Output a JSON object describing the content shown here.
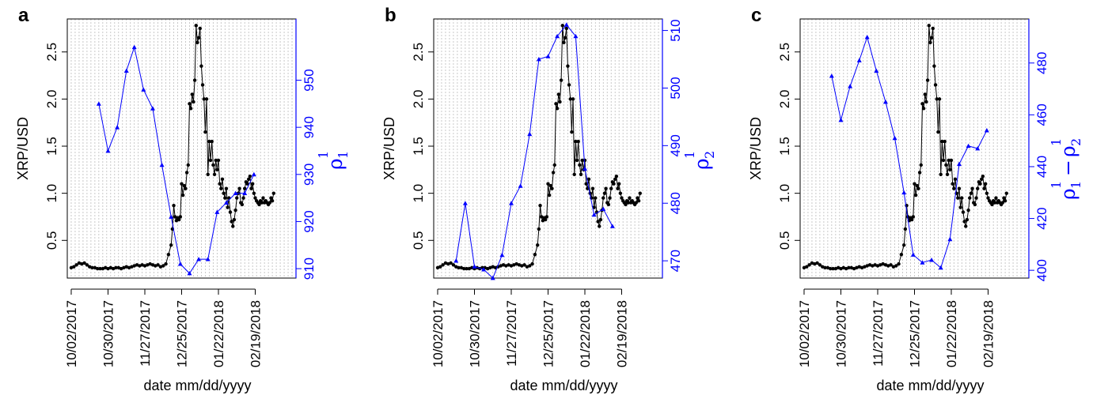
{
  "chart_data": [
    {
      "type": "line",
      "panel_label": "a",
      "xlabel": "date mm/dd/yyyy",
      "ylabel": "XRP/USD",
      "y2label": {
        "symbol": "ρ",
        "subscript": "1",
        "superscript": "1"
      },
      "x_range": [
        -3,
        171
      ],
      "xticks": [
        {
          "day": 0,
          "label": "10/02/2017"
        },
        {
          "day": 28,
          "label": "10/30/2017"
        },
        {
          "day": 56,
          "label": "11/27/2017"
        },
        {
          "day": 84,
          "label": "12/25/2017"
        },
        {
          "day": 112,
          "label": "01/22/2018"
        },
        {
          "day": 140,
          "label": "02/19/2018"
        }
      ],
      "gridline_step_days": 3,
      "ylim": [
        0.1,
        2.85
      ],
      "yticks": [
        0.5,
        1.0,
        1.5,
        2.0,
        2.5
      ],
      "y2lim": [
        908,
        963
      ],
      "y2ticks": [
        910,
        920,
        930,
        940,
        950
      ],
      "series_rho": [
        {
          "day": 21,
          "value": 945
        },
        {
          "day": 28,
          "value": 935
        },
        {
          "day": 35,
          "value": 940
        },
        {
          "day": 42,
          "value": 952
        },
        {
          "day": 48,
          "value": 957
        },
        {
          "day": 55,
          "value": 948
        },
        {
          "day": 62,
          "value": 944
        },
        {
          "day": 69,
          "value": 932
        },
        {
          "day": 76,
          "value": 921
        },
        {
          "day": 83,
          "value": 911
        },
        {
          "day": 90,
          "value": 909
        },
        {
          "day": 97,
          "value": 912
        },
        {
          "day": 104,
          "value": 912
        },
        {
          "day": 111,
          "value": 922
        },
        {
          "day": 118,
          "value": 924
        },
        {
          "day": 125,
          "value": 926
        },
        {
          "day": 132,
          "value": 926
        },
        {
          "day": 139,
          "value": 930
        }
      ]
    },
    {
      "type": "line",
      "panel_label": "b",
      "xlabel": "date mm/dd/yyyy",
      "ylabel": "XRP/USD",
      "y2label": {
        "symbol": "ρ",
        "subscript": "2",
        "superscript": "1"
      },
      "x_range": [
        -3,
        171
      ],
      "xticks": [
        {
          "day": 0,
          "label": "10/02/2017"
        },
        {
          "day": 28,
          "label": "10/30/2017"
        },
        {
          "day": 56,
          "label": "11/27/2017"
        },
        {
          "day": 84,
          "label": "12/25/2017"
        },
        {
          "day": 112,
          "label": "01/22/2018"
        },
        {
          "day": 140,
          "label": "02/19/2018"
        }
      ],
      "gridline_step_days": 3,
      "ylim": [
        0.1,
        2.85
      ],
      "yticks": [
        0.5,
        1.0,
        1.5,
        2.0,
        2.5
      ],
      "y2lim": [
        467,
        512
      ],
      "y2ticks": [
        470,
        480,
        490,
        500,
        510
      ],
      "series_rho": [
        {
          "day": 14,
          "value": 470
        },
        {
          "day": 21,
          "value": 480
        },
        {
          "day": 28,
          "value": 469
        },
        {
          "day": 35,
          "value": 468.5
        },
        {
          "day": 42,
          "value": 467
        },
        {
          "day": 49,
          "value": 471
        },
        {
          "day": 56,
          "value": 480
        },
        {
          "day": 63,
          "value": 483
        },
        {
          "day": 70,
          "value": 492
        },
        {
          "day": 77,
          "value": 505
        },
        {
          "day": 84,
          "value": 505.5
        },
        {
          "day": 91,
          "value": 509
        },
        {
          "day": 98,
          "value": 511
        },
        {
          "day": 105,
          "value": 509
        },
        {
          "day": 112,
          "value": 486
        },
        {
          "day": 119,
          "value": 478
        },
        {
          "day": 126,
          "value": 479
        },
        {
          "day": 133,
          "value": 476
        }
      ]
    },
    {
      "type": "line",
      "panel_label": "c",
      "xlabel": "date mm/dd/yyyy",
      "ylabel": "XRP/USD",
      "y2label": {
        "symbol": "ρ",
        "subscript_a": "1",
        "subscript_b": "2",
        "superscript_a": "1",
        "superscript_b": "1",
        "minus": "−"
      },
      "x_range": [
        -3,
        171
      ],
      "xticks": [
        {
          "day": 0,
          "label": "10/02/2017"
        },
        {
          "day": 28,
          "label": "10/30/2017"
        },
        {
          "day": 56,
          "label": "11/27/2017"
        },
        {
          "day": 84,
          "label": "12/25/2017"
        },
        {
          "day": 112,
          "label": "01/22/2018"
        },
        {
          "day": 140,
          "label": "02/19/2018"
        }
      ],
      "gridline_step_days": 3,
      "ylim": [
        0.1,
        2.85
      ],
      "yticks": [
        0.5,
        1.0,
        1.5,
        2.0,
        2.5
      ],
      "y2lim": [
        397,
        497
      ],
      "y2ticks": [
        400,
        420,
        440,
        460,
        480
      ],
      "series_rho": [
        {
          "day": 21,
          "value": 475
        },
        {
          "day": 28,
          "value": 458
        },
        {
          "day": 35,
          "value": 471
        },
        {
          "day": 42,
          "value": 481
        },
        {
          "day": 48,
          "value": 490
        },
        {
          "day": 55,
          "value": 477
        },
        {
          "day": 62,
          "value": 465
        },
        {
          "day": 69,
          "value": 451
        },
        {
          "day": 76,
          "value": 430
        },
        {
          "day": 83,
          "value": 406
        },
        {
          "day": 90,
          "value": 403
        },
        {
          "day": 97,
          "value": 404
        },
        {
          "day": 104,
          "value": 401
        },
        {
          "day": 111,
          "value": 412
        },
        {
          "day": 118,
          "value": 441
        },
        {
          "day": 125,
          "value": 448
        },
        {
          "day": 132,
          "value": 447
        },
        {
          "day": 139,
          "value": 454
        }
      ]
    }
  ],
  "price_series": {
    "name": "XRP/USD",
    "start_date": "10/02/2017",
    "days": [
      0,
      2,
      4,
      6,
      8,
      10,
      12,
      14,
      16,
      18,
      20,
      22,
      24,
      26,
      28,
      30,
      32,
      34,
      36,
      38,
      40,
      42,
      44,
      46,
      48,
      50,
      52,
      54,
      56,
      58,
      60,
      62,
      64,
      66,
      68,
      70,
      72,
      74,
      76,
      77,
      78,
      79,
      80,
      81,
      82,
      83,
      84,
      85,
      86,
      87,
      88,
      89,
      90,
      91,
      92,
      93,
      94,
      95,
      96,
      97,
      98,
      99,
      100,
      101,
      102,
      103,
      104,
      105,
      106,
      107,
      108,
      109,
      110,
      111,
      112,
      113,
      114,
      115,
      116,
      117,
      118,
      119,
      120,
      121,
      122,
      123,
      124,
      125,
      126,
      127,
      128,
      129,
      130,
      131,
      132,
      133,
      134,
      135,
      136,
      137,
      138,
      139,
      140,
      141,
      142,
      143,
      144,
      145,
      146,
      147,
      148,
      149,
      150,
      151,
      152,
      153,
      154
    ],
    "values": [
      0.21,
      0.22,
      0.24,
      0.26,
      0.25,
      0.26,
      0.24,
      0.22,
      0.21,
      0.21,
      0.2,
      0.2,
      0.2,
      0.21,
      0.2,
      0.21,
      0.2,
      0.21,
      0.21,
      0.2,
      0.21,
      0.22,
      0.21,
      0.22,
      0.23,
      0.24,
      0.23,
      0.24,
      0.23,
      0.24,
      0.25,
      0.24,
      0.23,
      0.24,
      0.22,
      0.23,
      0.25,
      0.35,
      0.45,
      0.62,
      0.87,
      0.75,
      0.71,
      0.74,
      0.72,
      0.75,
      1.1,
      0.98,
      1.08,
      1.05,
      1.22,
      1.3,
      1.95,
      1.9,
      2.05,
      1.97,
      2.2,
      2.78,
      2.6,
      2.65,
      2.75,
      2.35,
      2.15,
      2.0,
      1.65,
      2.0,
      1.2,
      1.55,
      1.35,
      1.55,
      1.3,
      1.2,
      1.35,
      1.25,
      1.35,
      1.1,
      1.05,
      1.15,
      1.0,
      0.95,
      1.05,
      0.85,
      0.95,
      0.8,
      0.7,
      0.65,
      0.72,
      0.82,
      0.95,
      1.0,
      1.05,
      0.9,
      0.88,
      0.95,
      1.05,
      1.12,
      1.1,
      1.15,
      1.18,
      1.05,
      1.1,
      1.0,
      0.95,
      0.92,
      0.9,
      0.88,
      0.92,
      0.9,
      0.95,
      0.9,
      0.92,
      0.9,
      0.88,
      0.9,
      0.95,
      0.92,
      1.0
    ]
  },
  "colors": {
    "price": "#000000",
    "rho": "#0000ff",
    "grid": "#bbbbbb",
    "axis": "#000000"
  }
}
